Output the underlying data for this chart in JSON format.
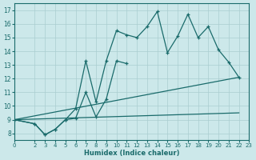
{
  "xlabel": "Humidex (Indice chaleur)",
  "bg_color": "#cce8ea",
  "grid_color": "#aacdd0",
  "line_color": "#1a6b6b",
  "xlim": [
    0,
    23
  ],
  "ylim": [
    7.5,
    17.5
  ],
  "xticks": [
    0,
    2,
    3,
    4,
    5,
    6,
    7,
    8,
    9,
    10,
    11,
    12,
    13,
    14,
    15,
    16,
    17,
    18,
    19,
    20,
    21,
    22,
    23
  ],
  "yticks": [
    8,
    9,
    10,
    11,
    12,
    13,
    14,
    15,
    16,
    17
  ],
  "curve1_x": [
    0,
    2,
    3,
    4,
    5,
    6,
    7,
    8,
    9,
    10,
    11,
    12,
    13,
    14,
    15,
    16,
    17,
    18,
    19,
    20,
    21,
    22
  ],
  "curve1_y": [
    9.0,
    8.7,
    7.9,
    8.3,
    9.0,
    9.8,
    13.3,
    10.3,
    13.3,
    15.5,
    15.2,
    15.0,
    15.8,
    16.9,
    13.9,
    15.1,
    16.7,
    15.0,
    15.8,
    14.1,
    13.2,
    12.1
  ],
  "curve2_x": [
    0,
    2,
    3,
    4,
    5,
    6,
    7,
    8,
    9,
    10,
    11
  ],
  "curve2_y": [
    9.0,
    8.7,
    7.9,
    8.3,
    9.0,
    9.1,
    11.0,
    9.2,
    10.5,
    13.3,
    13.1
  ],
  "refline1_x": [
    0,
    22
  ],
  "refline1_y": [
    9.0,
    12.1
  ],
  "refline2_x": [
    0,
    22
  ],
  "refline2_y": [
    9.0,
    9.5
  ]
}
